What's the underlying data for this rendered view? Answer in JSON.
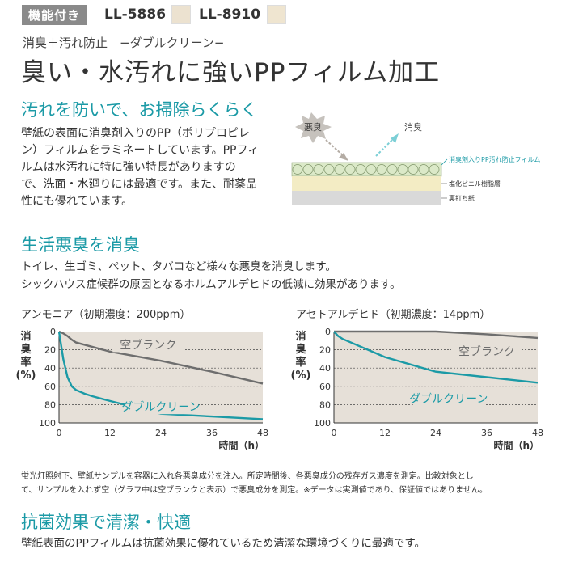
{
  "header": {
    "tag": "機能付き",
    "code1": "LL-5886",
    "code2": "LL-8910",
    "subtitle": "消臭＋汚れ防止　−ダブルクリーン−",
    "title": "臭い・水汚れに強いPPフィルム加工"
  },
  "section1": {
    "heading": "汚れを防いで、お掃除らくらく",
    "paragraph_lines": [
      "壁紙の表面に消臭剤入りのPP（ポリプロピレ",
      "ン）フィルムをラミネートしています。PPフィ",
      "ルムは水汚れに特に強い特長がありますの",
      "で、洗面・水廻りには最適です。また、耐薬品",
      "性にも優れています。"
    ],
    "diagram": {
      "odor_label": "悪臭",
      "deodorized_label": "消臭",
      "layer1": "消臭剤入りPP汚れ防止フィルム",
      "layer2": "塩化ビニル樹脂層",
      "layer3": "裏打ち紙"
    }
  },
  "section2": {
    "heading": "生活悪臭を消臭",
    "line1": "トイレ、生ゴミ、ペット、タバコなど様々な悪臭を消臭します。",
    "line2": "シックハウス症候群の原因となるホルムアルデヒドの低減に効果があります。"
  },
  "charts_text": {
    "left_title": "アンモニア（初期濃度：200ppm）",
    "right_title": "アセトアルデヒド（初期濃度：14ppm）",
    "y_label_chars": [
      "消",
      "臭",
      "率",
      "(%)"
    ],
    "x_label": "時間（h）"
  },
  "chart_data": [
    {
      "type": "line",
      "title": "アンモニア（初期濃度：200ppm）",
      "xlabel": "時間（h）",
      "ylabel": "消臭率(%)",
      "x_ticks": [
        0,
        12,
        24,
        36,
        48
      ],
      "y_ticks": [
        0,
        20,
        40,
        60,
        80,
        100
      ],
      "xlim": [
        0,
        48
      ],
      "ylim": [
        0,
        100
      ],
      "y_inverted": true,
      "grid": "horizontal-dashed",
      "series": [
        {
          "name": "空ブランク",
          "color": "#6e6e6e",
          "x": [
            0,
            1,
            2,
            3,
            4,
            8,
            12,
            24,
            36,
            48
          ],
          "y": [
            0,
            2,
            5,
            9,
            12,
            17,
            22,
            32,
            44,
            57
          ]
        },
        {
          "name": "ダブルクリーン",
          "color": "#1b9aa6",
          "x": [
            0,
            1,
            2,
            3,
            4,
            6,
            8,
            12,
            24,
            36,
            48
          ],
          "y": [
            0,
            30,
            50,
            60,
            64,
            68,
            71,
            76,
            90,
            93,
            96
          ]
        }
      ]
    },
    {
      "type": "line",
      "title": "アセトアルデヒド（初期濃度：14ppm）",
      "xlabel": "時間（h）",
      "ylabel": "消臭率(%)",
      "x_ticks": [
        0,
        12,
        24,
        36,
        48
      ],
      "y_ticks": [
        0,
        20,
        40,
        60,
        80,
        100
      ],
      "xlim": [
        0,
        48
      ],
      "ylim": [
        0,
        100
      ],
      "y_inverted": true,
      "grid": "horizontal-dashed",
      "series": [
        {
          "name": "空ブランク",
          "color": "#6e6e6e",
          "x": [
            0,
            12,
            24,
            36,
            48
          ],
          "y": [
            0,
            0,
            0,
            3,
            7
          ]
        },
        {
          "name": "ダブルクリーン",
          "color": "#1b9aa6",
          "x": [
            0,
            1,
            2,
            4,
            12,
            24,
            36,
            48
          ],
          "y": [
            0,
            5,
            8,
            12,
            28,
            44,
            50,
            56
          ]
        }
      ]
    }
  ],
  "note_lines": [
    "蛍光灯照射下、壁紙サンプルを容器に入れ各悪臭成分を注入。所定時間後、各悪臭成分の残存ガス濃度を測定。比較対象とし",
    "て、サンプルを入れず空（グラフ中は空ブランクと表示）で悪臭成分を測定。※データは実測値であり、保証値ではありません。"
  ],
  "section3": {
    "heading": "抗菌効果で清潔・快適",
    "line": "壁紙表面のPPフィルムは抗菌効果に優れているため清潔な環境づくりに最適です。"
  },
  "colors": {
    "accent": "#1b9aa6",
    "gray_line": "#6e6e6e",
    "chart_bg": "#e6e0d8"
  }
}
